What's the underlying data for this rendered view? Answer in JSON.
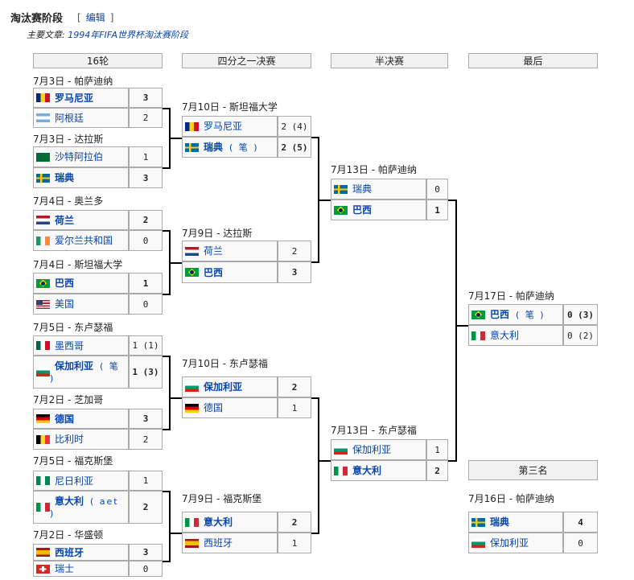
{
  "section": {
    "title": "淘汰赛阶段",
    "edit_open": "[",
    "edit_label": "编辑",
    "edit_close": "]",
    "main_prefix": "主要文章:",
    "main_link": "1994年FIFA世界杯淘汰赛阶段"
  },
  "headers": {
    "r16": "16轮",
    "qf": "四分之一决赛",
    "sf": "半决赛",
    "final": "最后",
    "third": "第三名"
  },
  "matches": [
    {
      "round": "r16",
      "date": "7月3日 - 帕萨迪纳",
      "teams": [
        {
          "name": "罗马尼亚",
          "flag": "romania",
          "score": "3",
          "win": true
        },
        {
          "name": "阿根廷",
          "flag": "argentina",
          "score": "2"
        }
      ]
    },
    {
      "round": "r16",
      "date": "7月3日 - 达拉斯",
      "teams": [
        {
          "name": "沙特阿拉伯",
          "flag": "saudi-arabia",
          "score": "1"
        },
        {
          "name": "瑞典",
          "flag": "sweden",
          "score": "3",
          "win": true
        }
      ]
    },
    {
      "round": "r16",
      "date": "7月4日 - 奥兰多",
      "teams": [
        {
          "name": "荷兰",
          "flag": "netherlands",
          "score": "2",
          "win": true
        },
        {
          "name": "爱尔兰共和国",
          "flag": "ireland",
          "score": "0"
        }
      ]
    },
    {
      "round": "r16",
      "date": "7月4日 - 斯坦福大学",
      "teams": [
        {
          "name": "巴西",
          "flag": "brazil",
          "score": "1",
          "win": true
        },
        {
          "name": "美国",
          "flag": "usa",
          "score": "0"
        }
      ]
    },
    {
      "round": "r16",
      "date": "7月5日 - 东卢瑟福",
      "teams": [
        {
          "name": "墨西哥",
          "flag": "mexico",
          "score": "1 (1)"
        },
        {
          "name": "保加利亚",
          "flag": "bulgaria",
          "score": "1 (3)",
          "win": true,
          "note": "( 笔 )"
        }
      ]
    },
    {
      "round": "r16",
      "date": "7月2日 - 芝加哥",
      "teams": [
        {
          "name": "德国",
          "flag": "germany",
          "score": "3",
          "win": true
        },
        {
          "name": "比利时",
          "flag": "belgium",
          "score": "2"
        }
      ]
    },
    {
      "round": "r16",
      "date": "7月5日 - 福克斯堡",
      "teams": [
        {
          "name": "尼日利亚",
          "flag": "nigeria",
          "score": "1"
        },
        {
          "name": "意大利",
          "flag": "italy",
          "score": "2",
          "win": true,
          "note": "( aet )"
        }
      ]
    },
    {
      "round": "r16",
      "date": "7月2日 - 华盛顿",
      "teams": [
        {
          "name": "西班牙",
          "flag": "spain",
          "score": "3",
          "win": true
        },
        {
          "name": "瑞士",
          "flag": "switzerland",
          "score": "0"
        }
      ]
    },
    {
      "round": "qf",
      "date": "7月10日 - 斯坦福大学",
      "teams": [
        {
          "name": "罗马尼亚",
          "flag": "romania",
          "score": "2 (4)"
        },
        {
          "name": "瑞典",
          "flag": "sweden",
          "score": "2 (5)",
          "win": true,
          "note": "( 笔 )"
        }
      ]
    },
    {
      "round": "qf",
      "date": "7月9日 - 达拉斯",
      "teams": [
        {
          "name": "荷兰",
          "flag": "netherlands",
          "score": "2"
        },
        {
          "name": "巴西",
          "flag": "brazil",
          "score": "3",
          "win": true
        }
      ]
    },
    {
      "round": "qf",
      "date": "7月10日 - 东卢瑟福",
      "teams": [
        {
          "name": "保加利亚",
          "flag": "bulgaria",
          "score": "2",
          "win": true
        },
        {
          "name": "德国",
          "flag": "germany",
          "score": "1"
        }
      ]
    },
    {
      "round": "qf",
      "date": "7月9日 - 福克斯堡",
      "teams": [
        {
          "name": "意大利",
          "flag": "italy",
          "score": "2",
          "win": true
        },
        {
          "name": "西班牙",
          "flag": "spain",
          "score": "1"
        }
      ]
    },
    {
      "round": "sf",
      "date": "7月13日 - 帕萨迪纳",
      "teams": [
        {
          "name": "瑞典",
          "flag": "sweden",
          "score": "0"
        },
        {
          "name": "巴西",
          "flag": "brazil",
          "score": "1",
          "win": true
        }
      ]
    },
    {
      "round": "sf",
      "date": "7月13日 - 东卢瑟福",
      "teams": [
        {
          "name": "保加利亚",
          "flag": "bulgaria",
          "score": "1"
        },
        {
          "name": "意大利",
          "flag": "italy",
          "score": "2",
          "win": true
        }
      ]
    },
    {
      "round": "final",
      "date": "7月17日 - 帕萨迪纳",
      "teams": [
        {
          "name": "巴西",
          "flag": "brazil",
          "score": "0 (3)",
          "win": true,
          "note": "( 笔 )"
        },
        {
          "name": "意大利",
          "flag": "italy",
          "score": "0 (2)"
        }
      ]
    },
    {
      "round": "third",
      "date": "7月16日 - 帕萨迪纳",
      "teams": [
        {
          "name": "瑞典",
          "flag": "sweden",
          "score": "4",
          "win": true
        },
        {
          "name": "保加利亚",
          "flag": "bulgaria",
          "score": "0"
        }
      ]
    }
  ]
}
